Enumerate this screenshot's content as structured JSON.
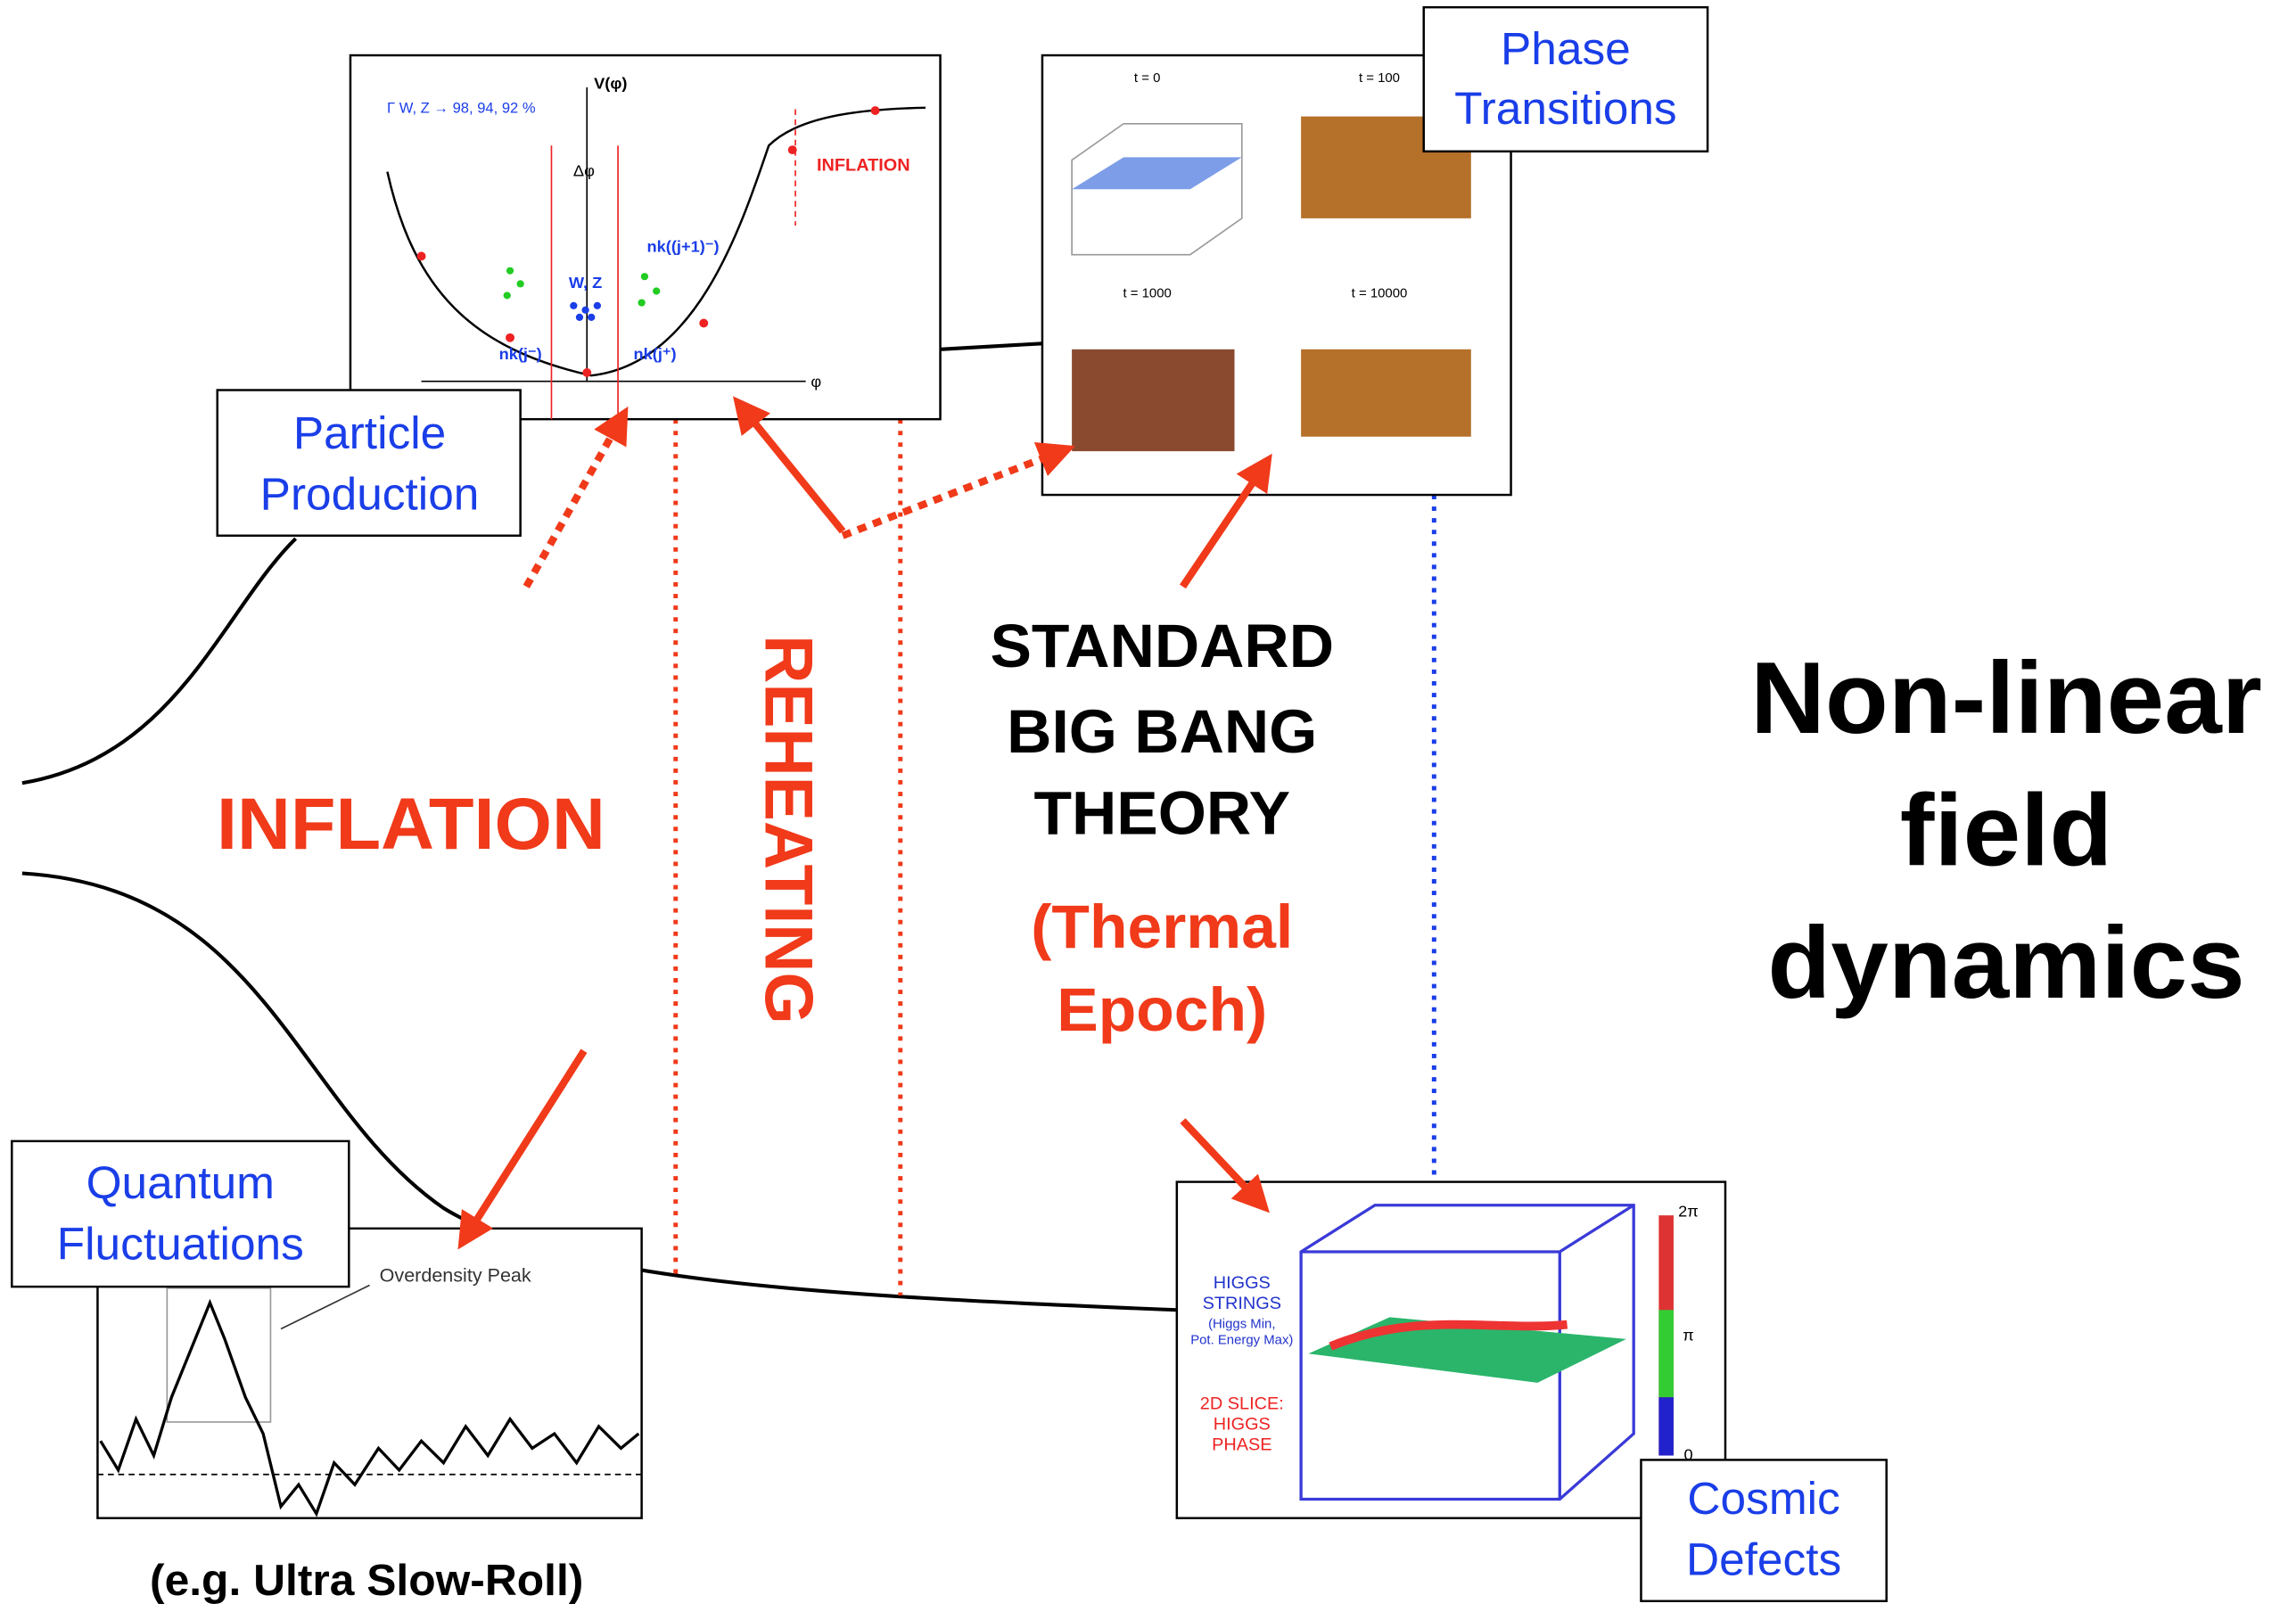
{
  "labels": {
    "particle_production": [
      "Particle",
      "Production"
    ],
    "phase_transitions": [
      "Phase",
      "Transitions"
    ],
    "quantum_fluctuations": [
      "Quantum",
      "Fluctuations"
    ],
    "cosmic_defects": [
      "Cosmic",
      "Defects"
    ],
    "inflation": "INFLATION",
    "reheating": "REHEATING",
    "standard_big_bang": [
      "STANDARD",
      "BIG BANG",
      "THEORY"
    ],
    "thermal_epoch": [
      "(Thermal",
      "Epoch)"
    ],
    "nonlinear": [
      "Non-linear",
      "field",
      "dynamics"
    ],
    "example": "(e.g. Ultra Slow-Roll)"
  },
  "potential_inset": {
    "axis_v": "V(φ)",
    "axis_phi": "φ",
    "rates": "Γ W, Z → 98, 94, 92 %",
    "inflation": "INFLATION",
    "delta_phi": "Δφ",
    "wz": "W, Z",
    "nk_next": "nk((j+1)⁻)",
    "nk_minus": "nk(j⁻)",
    "nk_plus": "nk(j⁺)"
  },
  "lattice_inset": {
    "times": [
      "t = 0",
      "t = 100",
      "t = 1000",
      "t = 10000"
    ]
  },
  "fluctuation_inset": {
    "peak": "Overdensity Peak"
  },
  "defects_inset": {
    "strings": [
      "HIGGS",
      "STRINGS",
      "(Higgs Min,",
      "Pot. Energy Max)"
    ],
    "slice": [
      "2D SLICE:",
      "HIGGS",
      "PHASE"
    ],
    "scale": [
      "2π",
      "π",
      "0"
    ]
  }
}
